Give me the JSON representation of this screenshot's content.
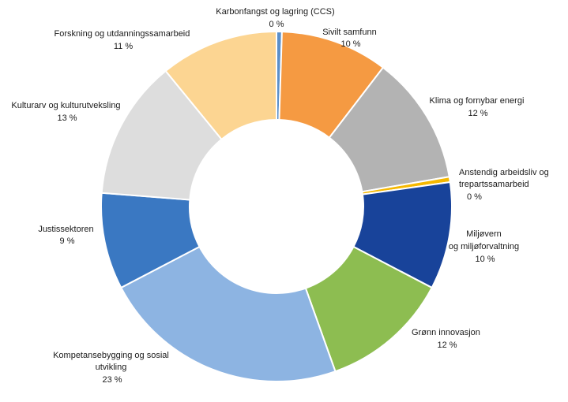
{
  "chart_data": {
    "type": "pie",
    "variant": "donut",
    "title": "",
    "slices": [
      {
        "name": "Karbonfangst og lagring (CCS)",
        "value": 0.5,
        "value_label": "0 %",
        "color": "#5b8fc9"
      },
      {
        "name": "Sivilt samfunn",
        "value": 10,
        "value_label": "10 %",
        "color": "#f59a42"
      },
      {
        "name": "Klima og fornybar energi",
        "value": 12,
        "value_label": "12 %",
        "color": "#b3b3b3"
      },
      {
        "name": "Anstendig arbeidsliv og trepartssamarbeid",
        "value": 0.5,
        "value_label": "0 %",
        "color": "#f5b800"
      },
      {
        "name": "Miljøvern og miljøforvaltning",
        "value": 10,
        "value_label": "10 %",
        "color": "#18439a"
      },
      {
        "name": "Grønn innovasjon",
        "value": 12,
        "value_label": "12 %",
        "color": "#8dbd51"
      },
      {
        "name": "Kompetansebygging og sosial utvikling",
        "value": 23,
        "value_label": "23 %",
        "color": "#8db4e2"
      },
      {
        "name": "Justissektoren",
        "value": 9,
        "value_label": "9 %",
        "color": "#3a78c2"
      },
      {
        "name": "Kulturarv og kulturutveksling",
        "value": 13,
        "value_label": "13 %",
        "color": "#dddddd"
      },
      {
        "name": "Forskning og utdanningssamarbeid",
        "value": 11,
        "value_label": "11 %",
        "color": "#fcd592"
      }
    ],
    "legend": "none",
    "labels": "outside"
  }
}
